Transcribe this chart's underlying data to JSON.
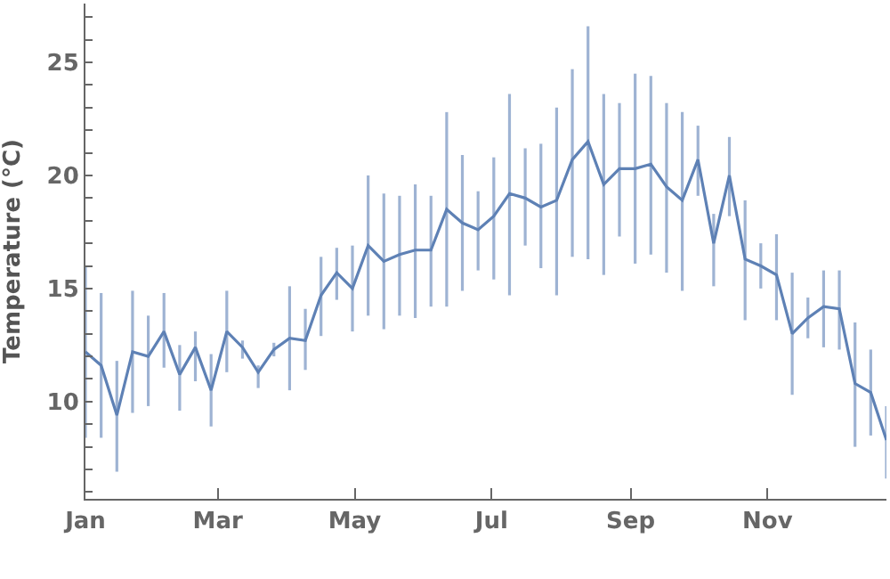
{
  "chart_data": {
    "type": "line",
    "ylabel": "Temperature (°C)",
    "x": [
      "--01-01",
      "--01-08",
      "--01-15",
      "--01-22",
      "--01-29",
      "--02-05",
      "--02-12",
      "--02-19",
      "--02-26",
      "--03-05",
      "--03-12",
      "--03-19",
      "--03-26",
      "--04-02",
      "--04-09",
      "--04-16",
      "--04-23",
      "--04-30",
      "--05-07",
      "--05-14",
      "--05-21",
      "--05-28",
      "--06-04",
      "--06-11",
      "--06-18",
      "--06-25",
      "--07-02",
      "--07-09",
      "--07-16",
      "--07-23",
      "--07-30",
      "--08-06",
      "--08-13",
      "--08-20",
      "--08-27",
      "--09-03",
      "--09-10",
      "--09-17",
      "--09-24",
      "--10-01",
      "--10-08",
      "--10-15",
      "--10-22",
      "--10-29",
      "--11-05",
      "--11-12",
      "--11-19",
      "--11-26",
      "--12-03",
      "--12-10",
      "--12-17",
      "--12-24"
    ],
    "series": [
      {
        "color": "#5e81b5",
        "values": [
          12.2,
          11.6,
          9.4,
          12.2,
          12.0,
          13.1,
          11.2,
          12.4,
          10.5,
          13.1,
          12.4,
          11.3,
          12.3,
          12.8,
          12.7,
          14.7,
          15.7,
          15.0,
          16.9,
          16.2,
          16.5,
          16.7,
          16.7,
          18.5,
          17.9,
          17.6,
          18.2,
          19.2,
          19.0,
          18.6,
          18.9,
          20.7,
          21.5,
          19.6,
          20.3,
          20.3,
          20.5,
          19.5,
          18.9,
          20.7,
          17.0,
          20.0,
          16.3,
          16.0,
          15.6,
          13.0,
          13.7,
          14.2,
          14.1,
          10.8,
          10.4,
          8.3
        ],
        "errors": [
          [
            8.4,
            16.0
          ],
          [
            8.4,
            14.8
          ],
          [
            6.9,
            11.8
          ],
          [
            9.5,
            14.9
          ],
          [
            9.8,
            13.8
          ],
          [
            11.5,
            14.8
          ],
          [
            9.6,
            12.5
          ],
          [
            10.9,
            13.1
          ],
          [
            8.9,
            12.1
          ],
          [
            11.3,
            14.9
          ],
          [
            11.9,
            12.7
          ],
          [
            10.6,
            11.6
          ],
          [
            12.0,
            12.6
          ],
          [
            10.5,
            15.1
          ],
          [
            11.4,
            14.1
          ],
          [
            12.9,
            16.4
          ],
          [
            14.5,
            16.8
          ],
          [
            13.1,
            16.9
          ],
          [
            13.8,
            20.0
          ],
          [
            13.2,
            19.2
          ],
          [
            13.8,
            19.1
          ],
          [
            13.7,
            19.6
          ],
          [
            14.2,
            19.1
          ],
          [
            14.2,
            22.8
          ],
          [
            14.9,
            20.9
          ],
          [
            15.8,
            19.3
          ],
          [
            15.4,
            20.8
          ],
          [
            14.7,
            23.6
          ],
          [
            16.9,
            21.2
          ],
          [
            15.9,
            21.4
          ],
          [
            14.7,
            23.0
          ],
          [
            16.4,
            24.7
          ],
          [
            16.3,
            26.6
          ],
          [
            15.6,
            23.6
          ],
          [
            17.3,
            23.2
          ],
          [
            16.1,
            24.5
          ],
          [
            16.5,
            24.4
          ],
          [
            15.7,
            23.2
          ],
          [
            14.9,
            22.8
          ],
          [
            19.1,
            22.2
          ],
          [
            15.1,
            18.3
          ],
          [
            18.2,
            21.7
          ],
          [
            13.6,
            18.9
          ],
          [
            15.0,
            17.0
          ],
          [
            13.6,
            17.4
          ],
          [
            10.3,
            15.7
          ],
          [
            12.8,
            14.6
          ],
          [
            12.4,
            15.8
          ],
          [
            12.3,
            15.8
          ],
          [
            8.0,
            13.5
          ],
          [
            8.5,
            12.3
          ],
          [
            6.6,
            9.8
          ]
        ]
      }
    ],
    "xlim": [
      "--01-01",
      "--12-24"
    ],
    "xticks": [
      {
        "value": "--01-01",
        "label": "Jan"
      },
      {
        "value": "--03-01",
        "label": "Mar"
      },
      {
        "value": "--05-01",
        "label": "May"
      },
      {
        "value": "--07-01",
        "label": "Jul"
      },
      {
        "value": "--09-01",
        "label": "Sep"
      },
      {
        "value": "--11-01",
        "label": "Nov"
      }
    ],
    "ylim": [
      5.7,
      27.6
    ],
    "yticks": [
      {
        "value": 6,
        "label": null
      },
      {
        "value": 7,
        "label": null
      },
      {
        "value": 8,
        "label": null
      },
      {
        "value": 9,
        "label": null
      },
      10,
      {
        "value": 11,
        "label": null
      },
      {
        "value": 12,
        "label": null
      },
      {
        "value": 13,
        "label": null
      },
      {
        "value": 14,
        "label": null
      },
      15,
      {
        "value": 16,
        "label": null
      },
      {
        "value": 17,
        "label": null
      },
      {
        "value": 18,
        "label": null
      },
      {
        "value": 19,
        "label": null
      },
      20,
      {
        "value": 21,
        "label": null
      },
      {
        "value": 22,
        "label": null
      },
      {
        "value": 23,
        "label": null
      },
      {
        "value": 24,
        "label": null
      },
      25,
      {
        "value": 26,
        "label": null
      },
      {
        "value": 27,
        "label": null
      }
    ],
    "marker": "none",
    "line_style": "solid"
  }
}
